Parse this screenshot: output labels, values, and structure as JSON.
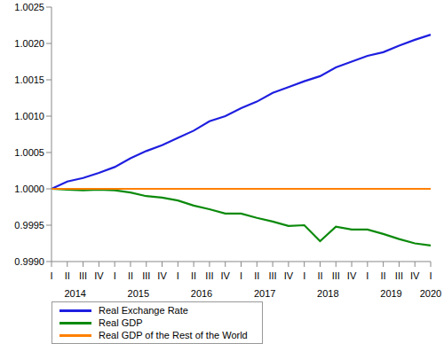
{
  "chart_data": {
    "type": "line",
    "categories": [
      "I",
      "II",
      "III",
      "IV",
      "I",
      "II",
      "III",
      "IV",
      "I",
      "II",
      "III",
      "IV",
      "I",
      "II",
      "III",
      "IV",
      "I",
      "II",
      "III",
      "IV",
      "I",
      "II",
      "III",
      "IV",
      "I"
    ],
    "years": [
      "2014",
      "2014",
      "2014",
      "2014",
      "2015",
      "2015",
      "2015",
      "2015",
      "2016",
      "2016",
      "2016",
      "2016",
      "2017",
      "2017",
      "2017",
      "2017",
      "2018",
      "2018",
      "2018",
      "2018",
      "2019",
      "2019",
      "2019",
      "2019",
      "2020"
    ],
    "series": [
      {
        "name": "Real Exchange Rate",
        "color": "#1f1fe0",
        "values": [
          1.0,
          1.0001,
          1.00015,
          1.00022,
          1.0003,
          1.00042,
          1.00052,
          1.0006,
          1.0007,
          1.0008,
          1.00093,
          1.001,
          1.00111,
          1.0012,
          1.00132,
          1.0014,
          1.00148,
          1.00155,
          1.00167,
          1.00175,
          1.00183,
          1.00188,
          1.00197,
          1.00205,
          1.00212
        ]
      },
      {
        "name": "Real GDP",
        "color": "#0b8a0b",
        "values": [
          1.0,
          0.99999,
          0.99998,
          0.99999,
          0.99998,
          0.99995,
          0.9999,
          0.99988,
          0.99984,
          0.99977,
          0.99972,
          0.99966,
          0.99966,
          0.9996,
          0.99955,
          0.99949,
          0.9995,
          0.99928,
          0.99948,
          0.99944,
          0.99944,
          0.99938,
          0.99931,
          0.99925,
          0.99922
        ]
      },
      {
        "name": "Real GDP of the Rest of the World",
        "color": "#ff8000",
        "values": [
          1.0,
          1.0,
          1.0,
          1.0,
          1.0,
          1.0,
          1.0,
          1.0,
          1.0,
          1.0,
          1.0,
          1.0,
          1.0,
          1.0,
          1.0,
          1.0,
          1.0,
          1.0,
          1.0,
          1.0,
          1.0,
          1.0,
          1.0,
          1.0,
          1.0
        ]
      }
    ],
    "ylim": [
      0.999,
      1.0025
    ],
    "yticks": [
      {
        "value": 0.999,
        "label": "0.9990"
      },
      0.9995,
      {
        "value": 1.0,
        "label": "1.0000"
      },
      1.0005,
      {
        "value": 1.001,
        "label": "1.0010"
      },
      1.0015,
      {
        "value": 1.002,
        "label": "1.0020"
      },
      1.0025
    ],
    "legend": "bottom",
    "grid": false
  }
}
